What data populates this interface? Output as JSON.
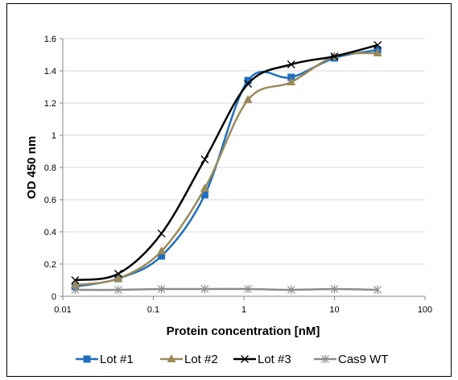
{
  "chart_data": {
    "type": "line",
    "title": "",
    "xlabel": "Protein concentration [nM]",
    "ylabel": "OD 450 nm",
    "xscale": "log",
    "xlim": [
      0.01,
      100
    ],
    "ylim": [
      0,
      1.6
    ],
    "x_ticks": [
      "0.01",
      "0.1",
      "1",
      "10",
      "100"
    ],
    "y_ticks": [
      "0",
      "0.2",
      "0.4",
      "0.6",
      "0.8",
      "1",
      "1.2",
      "1.4",
      "1.6"
    ],
    "grid": true,
    "legend_position": "bottom",
    "x": [
      0.0137,
      0.041,
      0.123,
      0.37,
      1.11,
      3.33,
      10,
      30
    ],
    "series": [
      {
        "name": "Lot #1",
        "color": "#1f6fbf",
        "marker": "square",
        "values": [
          0.06,
          0.11,
          0.25,
          0.63,
          1.34,
          1.36,
          1.48,
          1.53
        ]
      },
      {
        "name": "Lot #2",
        "color": "#9a8a5a",
        "marker": "triangle",
        "values": [
          0.07,
          0.11,
          0.28,
          0.67,
          1.22,
          1.33,
          1.49,
          1.51
        ]
      },
      {
        "name": "Lot #3",
        "color": "#000000",
        "marker": "x",
        "values": [
          0.1,
          0.14,
          0.39,
          0.85,
          1.32,
          1.44,
          1.49,
          1.56
        ]
      },
      {
        "name": "Cas9 WT",
        "color": "#8c8c8c",
        "marker": "star",
        "values": [
          0.04,
          0.04,
          0.045,
          0.045,
          0.045,
          0.04,
          0.045,
          0.04
        ]
      }
    ]
  }
}
